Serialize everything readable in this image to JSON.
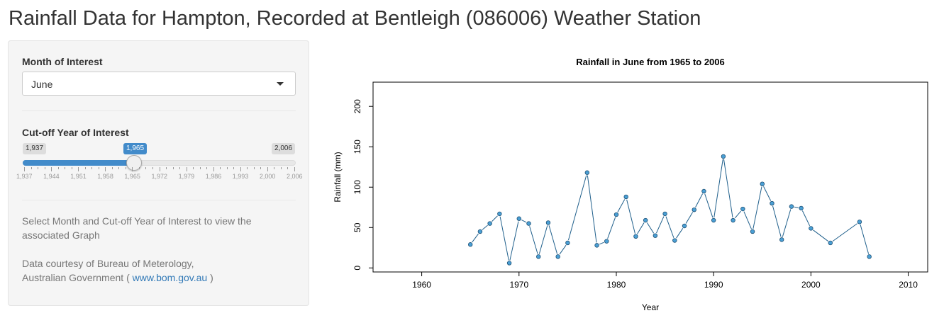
{
  "page": {
    "title": "Rainfall Data for Hampton, Recorded at Bentleigh (086006) Weather Station"
  },
  "sidebar": {
    "month_label": "Month of Interest",
    "month_selected": "June",
    "year_label": "Cut-off Year of Interest",
    "slider": {
      "min_label": "1,937",
      "max_label": "2,006",
      "value_label": "1,965",
      "min": 1937,
      "max": 2006,
      "value": 1965,
      "tick_labels": [
        "1,937",
        "1,944",
        "1,951",
        "1,958",
        "1,965",
        "1,972",
        "1,979",
        "1,986",
        "1,993",
        "2,000",
        "2,006"
      ]
    },
    "help_text": "Select Month and Cut-off Year of Interest to view the associated Graph",
    "credit_line1": "Data courtesy of Bureau of Meterology,",
    "credit_line2_prefix": "Australian Government (",
    "credit_link": "www.bom.gov.au",
    "credit_line2_suffix": ")",
    "accent_color": "#428bca"
  },
  "chart_data": {
    "type": "line",
    "title": "Rainfall in June from 1965 to 2006",
    "xlabel": "Year",
    "ylabel": "Rainfall (mm)",
    "xlim": [
      1955,
      2012
    ],
    "ylim": [
      -5,
      230
    ],
    "xticks": [
      1960,
      1970,
      1980,
      1990,
      2000,
      2010
    ],
    "yticks": [
      0,
      50,
      100,
      150,
      200
    ],
    "line_color": "#1f5f8b",
    "marker_color": "#4a9fd4",
    "grid": false,
    "x": [
      1965,
      1966,
      1967,
      1968,
      1969,
      1970,
      1971,
      1972,
      1973,
      1974,
      1975,
      1977,
      1978,
      1979,
      1980,
      1981,
      1982,
      1983,
      1984,
      1985,
      1986,
      1987,
      1988,
      1989,
      1990,
      1991,
      1992,
      1993,
      1994,
      1995,
      1996,
      1997,
      1998,
      1999,
      2000,
      2002,
      2005,
      2006
    ],
    "y": [
      29,
      45,
      55,
      67,
      6,
      61,
      55,
      14,
      56,
      14,
      31,
      118,
      28,
      33,
      66,
      88,
      39,
      59,
      40,
      67,
      34,
      52,
      72,
      95,
      59,
      138,
      59,
      73,
      45,
      104,
      80,
      35,
      76,
      74,
      49,
      31,
      57,
      14
    ]
  }
}
